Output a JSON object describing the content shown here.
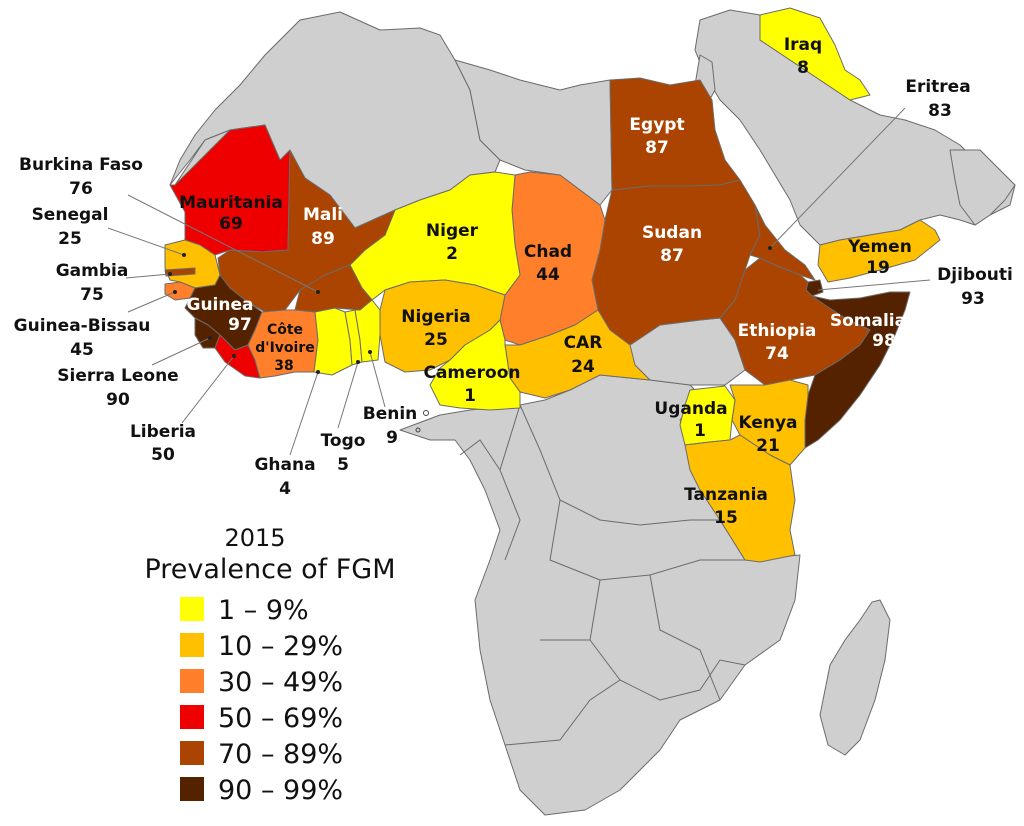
{
  "legend": {
    "year": "2015",
    "title": "Prevalence of FGM",
    "classes": [
      {
        "label": "1 – 9%",
        "color": "#ffff00"
      },
      {
        "label": "10 – 29%",
        "color": "#ffc000"
      },
      {
        "label": "30 – 49%",
        "color": "#ff7f2a"
      },
      {
        "label": "50 – 69%",
        "color": "#ee0000"
      },
      {
        "label": "70 – 89%",
        "color": "#aa4400"
      },
      {
        "label": "90 – 99%",
        "color": "#552200"
      }
    ]
  },
  "countries": {
    "iraq": {
      "name": "Iraq",
      "value": "8"
    },
    "eritrea": {
      "name": "Eritrea",
      "value": "83"
    },
    "egypt": {
      "name": "Egypt",
      "value": "87"
    },
    "sudan": {
      "name": "Sudan",
      "value": "87"
    },
    "yemen": {
      "name": "Yemen",
      "value": "19"
    },
    "djibouti": {
      "name": "Djibouti",
      "value": "93"
    },
    "somalia": {
      "name": "Somalia",
      "value": "98"
    },
    "ethiopia": {
      "name": "Ethiopia",
      "value": "74"
    },
    "chad": {
      "name": "Chad",
      "value": "44"
    },
    "car": {
      "name": "CAR",
      "value": "24"
    },
    "niger": {
      "name": "Niger",
      "value": "2"
    },
    "nigeria": {
      "name": "Nigeria",
      "value": "25"
    },
    "cameroon": {
      "name": "Cameroon",
      "value": "1"
    },
    "mali": {
      "name": "Mali",
      "value": "89"
    },
    "mauritania": {
      "name": "Mauritania",
      "value": "69"
    },
    "burkina_faso": {
      "name": "Burkina Faso",
      "value": "76"
    },
    "senegal": {
      "name": "Senegal",
      "value": "25"
    },
    "gambia": {
      "name": "Gambia",
      "value": "75"
    },
    "guinea_bissau": {
      "name": "Guinea-Bissau",
      "value": "45"
    },
    "guinea": {
      "name": "Guinea",
      "value": "97"
    },
    "sierra_leone": {
      "name": "Sierra Leone",
      "value": "90"
    },
    "liberia": {
      "name": "Liberia",
      "value": "50"
    },
    "cote_divoire": {
      "name": "Côte d'Ivoire",
      "name_line1": "Côte",
      "name_line2": "d'Ivoire",
      "value": "38"
    },
    "ghana": {
      "name": "Ghana",
      "value": "4"
    },
    "togo": {
      "name": "Togo",
      "value": "5"
    },
    "benin": {
      "name": "Benin",
      "value": "9"
    },
    "uganda": {
      "name": "Uganda",
      "value": "1"
    },
    "kenya": {
      "name": "Kenya",
      "value": "21"
    },
    "tanzania": {
      "name": "Tanzania",
      "value": "15"
    }
  }
}
